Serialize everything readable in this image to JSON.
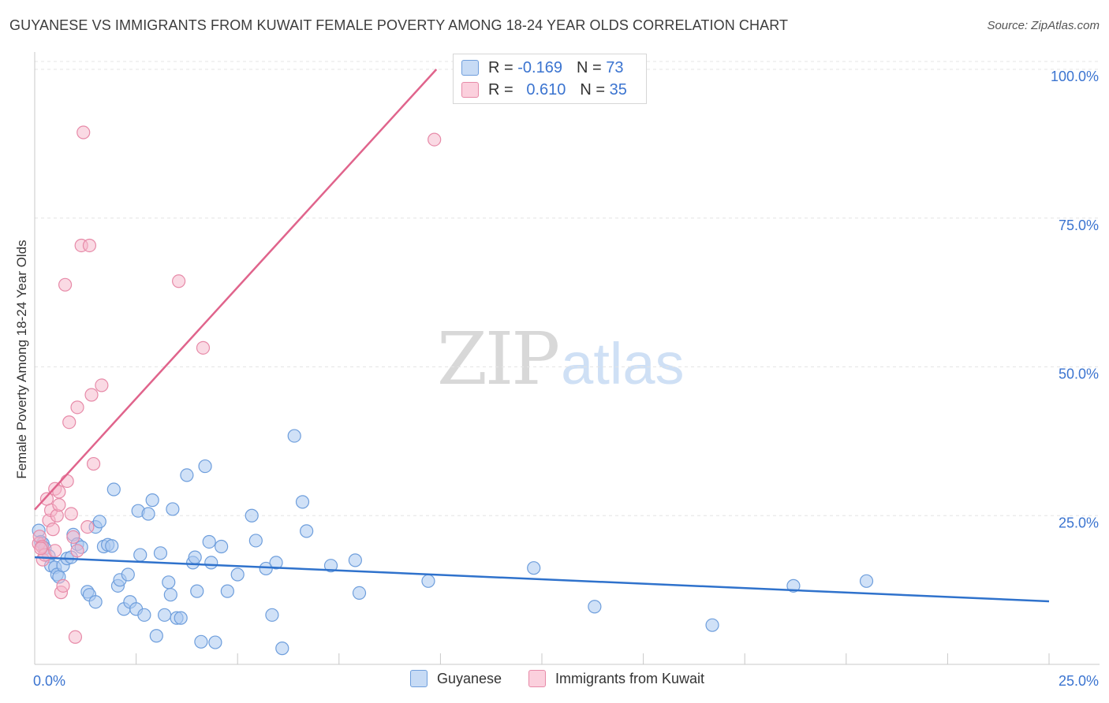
{
  "header": {
    "title": "GUYANESE VS IMMIGRANTS FROM KUWAIT FEMALE POVERTY AMONG 18-24 YEAR OLDS CORRELATION CHART",
    "source": "Source: ZipAtlas.com"
  },
  "watermark": {
    "zip": "ZIP",
    "atlas": "atlas"
  },
  "legend": {
    "rows": [
      {
        "r_label": "R =",
        "r_value": "-0.169",
        "n_label": "N =",
        "n_value": "73"
      },
      {
        "r_label": "R =",
        "r_value": "0.610",
        "n_label": "N =",
        "n_value": "35"
      }
    ]
  },
  "colors": {
    "blue_fill": "#a9c8f0",
    "blue_stroke": "#6e9edc",
    "blue_line": "#2f72cc",
    "pink_fill": "#f6b6ca",
    "pink_stroke": "#e78aa8",
    "pink_line": "#e0648c",
    "tick_color": "#3b74d0",
    "grid": "#e4e4e4"
  },
  "chart_data": {
    "type": "scatter",
    "title": "GUYANESE VS IMMIGRANTS FROM KUWAIT FEMALE POVERTY AMONG 18-24 YEAR OLDS CORRELATION CHART",
    "xlabel": "",
    "ylabel": "Female Poverty Among 18-24 Year Olds",
    "xlim": [
      0,
      25
    ],
    "ylim": [
      0,
      100
    ],
    "x_tick_labels": [
      "0.0%",
      "25.0%"
    ],
    "y_ticks": [
      25,
      50,
      75,
      100
    ],
    "y_tick_labels": [
      "25.0%",
      "50.0%",
      "75.0%",
      "100.0%"
    ],
    "grid": true,
    "legend_position": "bottom",
    "series": [
      {
        "name": "Guyanese",
        "r": -0.169,
        "n": 73,
        "trend": {
          "x": [
            0,
            25
          ],
          "y": [
            18,
            10.6
          ]
        },
        "points": [
          [
            0.1,
            22.5
          ],
          [
            0.15,
            20.6
          ],
          [
            0.2,
            20.3
          ],
          [
            0.25,
            19.5
          ],
          [
            0.35,
            18.2
          ],
          [
            0.4,
            16.6
          ],
          [
            0.5,
            16.3
          ],
          [
            0.55,
            15.1
          ],
          [
            0.6,
            14.7
          ],
          [
            0.7,
            16.6
          ],
          [
            0.8,
            17.8
          ],
          [
            0.9,
            18.0
          ],
          [
            0.95,
            21.8
          ],
          [
            1.05,
            20.2
          ],
          [
            1.15,
            19.7
          ],
          [
            1.3,
            12.2
          ],
          [
            1.35,
            11.7
          ],
          [
            1.5,
            10.5
          ],
          [
            1.5,
            23.1
          ],
          [
            1.6,
            24.0
          ],
          [
            1.7,
            19.8
          ],
          [
            1.8,
            20.1
          ],
          [
            1.9,
            19.9
          ],
          [
            1.95,
            29.4
          ],
          [
            2.05,
            13.2
          ],
          [
            2.1,
            14.2
          ],
          [
            2.2,
            9.3
          ],
          [
            2.3,
            15.1
          ],
          [
            2.35,
            10.5
          ],
          [
            2.5,
            9.3
          ],
          [
            2.55,
            25.8
          ],
          [
            2.6,
            18.4
          ],
          [
            2.7,
            8.3
          ],
          [
            2.8,
            25.3
          ],
          [
            2.9,
            27.6
          ],
          [
            3.0,
            4.8
          ],
          [
            3.1,
            18.7
          ],
          [
            3.2,
            8.3
          ],
          [
            3.3,
            13.8
          ],
          [
            3.35,
            11.7
          ],
          [
            3.4,
            26.1
          ],
          [
            3.5,
            7.8
          ],
          [
            3.6,
            7.8
          ],
          [
            3.75,
            31.8
          ],
          [
            3.9,
            17.1
          ],
          [
            3.95,
            18.0
          ],
          [
            4.0,
            12.3
          ],
          [
            4.1,
            3.8
          ],
          [
            4.2,
            33.3
          ],
          [
            4.3,
            20.6
          ],
          [
            4.35,
            17.1
          ],
          [
            4.45,
            3.7
          ],
          [
            4.6,
            19.8
          ],
          [
            4.75,
            12.3
          ],
          [
            5.0,
            15.1
          ],
          [
            5.35,
            25.0
          ],
          [
            5.45,
            20.8
          ],
          [
            5.7,
            16.1
          ],
          [
            5.85,
            8.3
          ],
          [
            5.95,
            17.1
          ],
          [
            6.1,
            2.7
          ],
          [
            6.4,
            38.4
          ],
          [
            6.6,
            27.3
          ],
          [
            6.7,
            22.4
          ],
          [
            7.3,
            16.6
          ],
          [
            7.9,
            17.5
          ],
          [
            8.0,
            12.0
          ],
          [
            9.7,
            14.0
          ],
          [
            12.3,
            16.2
          ],
          [
            13.8,
            9.7
          ],
          [
            16.7,
            6.6
          ],
          [
            18.7,
            13.2
          ],
          [
            20.5,
            14.0
          ]
        ]
      },
      {
        "name": "Immigrants from Kuwait",
        "r": 0.61,
        "n": 35,
        "trend": {
          "x": [
            0,
            9.9
          ],
          "y": [
            26,
            100
          ]
        },
        "points": [
          [
            0.1,
            20.3
          ],
          [
            0.12,
            21.5
          ],
          [
            0.18,
            19.8
          ],
          [
            0.2,
            17.6
          ],
          [
            0.25,
            18.4
          ],
          [
            0.3,
            27.8
          ],
          [
            0.35,
            24.2
          ],
          [
            0.4,
            25.9
          ],
          [
            0.45,
            22.7
          ],
          [
            0.5,
            29.5
          ],
          [
            0.5,
            19.1
          ],
          [
            0.55,
            25.0
          ],
          [
            0.6,
            29.0
          ],
          [
            0.6,
            26.8
          ],
          [
            0.65,
            12.1
          ],
          [
            0.7,
            13.2
          ],
          [
            0.75,
            63.8
          ],
          [
            0.8,
            30.8
          ],
          [
            0.85,
            40.7
          ],
          [
            0.9,
            25.3
          ],
          [
            0.95,
            21.4
          ],
          [
            1.0,
            4.6
          ],
          [
            1.05,
            43.2
          ],
          [
            1.05,
            19.1
          ],
          [
            1.15,
            70.4
          ],
          [
            1.2,
            89.4
          ],
          [
            1.3,
            23.1
          ],
          [
            1.35,
            70.4
          ],
          [
            1.4,
            45.3
          ],
          [
            1.45,
            33.7
          ],
          [
            1.65,
            46.9
          ],
          [
            3.55,
            64.4
          ],
          [
            4.15,
            53.2
          ],
          [
            9.85,
            88.2
          ],
          [
            0.15,
            19.5
          ]
        ]
      }
    ]
  }
}
